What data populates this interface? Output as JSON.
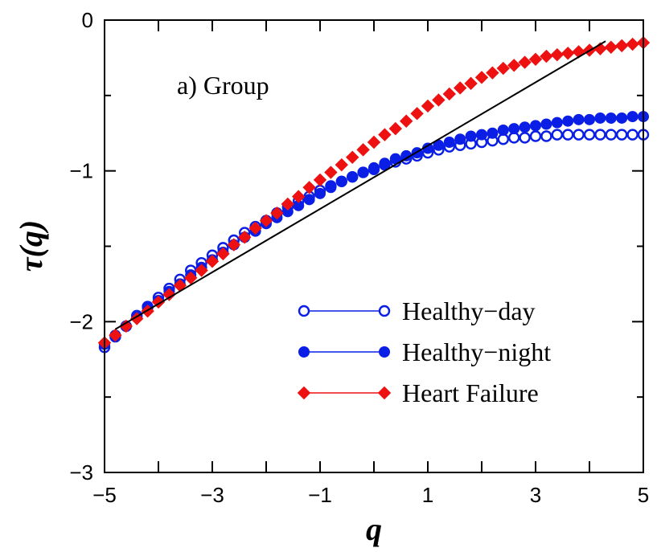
{
  "chart_data": {
    "type": "scatter",
    "annotation": "a) Group",
    "xlabel": "q",
    "ylabel": "τ(q)",
    "xlim": [
      -5,
      5
    ],
    "ylim": [
      -3,
      0
    ],
    "xticks_labeled": [
      -5,
      -3,
      -1,
      1,
      3,
      5
    ],
    "xtick_labels": [
      "−5",
      "−3",
      "−1",
      "1",
      "3",
      "5"
    ],
    "xticks_minor": [
      -4,
      -2,
      0,
      2,
      4
    ],
    "yticks": [
      0,
      -1,
      -2,
      -3
    ],
    "ytick_labels": [
      "0",
      "−1",
      "−2",
      "−3"
    ],
    "legend_position": "bottom-right",
    "x": [
      -5,
      -4.8,
      -4.6,
      -4.4,
      -4.2,
      -4,
      -3.8,
      -3.6,
      -3.4,
      -3.2,
      -3,
      -2.8,
      -2.6,
      -2.4,
      -2.2,
      -2,
      -1.8,
      -1.6,
      -1.4,
      -1.2,
      -1,
      -0.8,
      -0.6,
      -0.4,
      -0.2,
      0,
      0.2,
      0.4,
      0.6,
      0.8,
      1,
      1.2,
      1.4,
      1.6,
      1.8,
      2,
      2.2,
      2.4,
      2.6,
      2.8,
      3,
      3.2,
      3.4,
      3.6,
      3.8,
      4,
      4.2,
      4.4,
      4.6,
      4.8,
      5
    ],
    "series": [
      {
        "name": "Healthy−day",
        "marker": "open-circle",
        "color": "#0a1ee6",
        "y": [
          -2.17,
          -2.1,
          -2.03,
          -1.96,
          -1.9,
          -1.84,
          -1.78,
          -1.72,
          -1.66,
          -1.61,
          -1.56,
          -1.51,
          -1.46,
          -1.41,
          -1.37,
          -1.33,
          -1.28,
          -1.24,
          -1.2,
          -1.17,
          -1.13,
          -1.1,
          -1.07,
          -1.04,
          -1.01,
          -0.99,
          -0.96,
          -0.94,
          -0.92,
          -0.9,
          -0.88,
          -0.86,
          -0.84,
          -0.83,
          -0.82,
          -0.81,
          -0.8,
          -0.79,
          -0.78,
          -0.78,
          -0.77,
          -0.77,
          -0.76,
          -0.76,
          -0.76,
          -0.76,
          -0.76,
          -0.76,
          -0.76,
          -0.76,
          -0.76
        ]
      },
      {
        "name": "Healthy−night",
        "marker": "filled-circle",
        "color": "#0a1ee6",
        "y": [
          -2.15,
          -2.09,
          -2.03,
          -1.97,
          -1.91,
          -1.86,
          -1.8,
          -1.75,
          -1.69,
          -1.64,
          -1.59,
          -1.54,
          -1.49,
          -1.44,
          -1.4,
          -1.35,
          -1.31,
          -1.27,
          -1.23,
          -1.19,
          -1.15,
          -1.11,
          -1.07,
          -1.04,
          -1.01,
          -0.98,
          -0.95,
          -0.92,
          -0.9,
          -0.88,
          -0.85,
          -0.83,
          -0.81,
          -0.79,
          -0.77,
          -0.76,
          -0.75,
          -0.73,
          -0.72,
          -0.71,
          -0.7,
          -0.69,
          -0.68,
          -0.67,
          -0.66,
          -0.66,
          -0.65,
          -0.65,
          -0.65,
          -0.64,
          -0.64
        ]
      },
      {
        "name": "Heart Failure",
        "marker": "diamond",
        "color": "#ee1111",
        "y": [
          -2.14,
          -2.09,
          -2.03,
          -1.98,
          -1.93,
          -1.87,
          -1.82,
          -1.76,
          -1.71,
          -1.66,
          -1.6,
          -1.55,
          -1.49,
          -1.44,
          -1.38,
          -1.33,
          -1.28,
          -1.22,
          -1.17,
          -1.11,
          -1.06,
          -1.01,
          -0.96,
          -0.91,
          -0.86,
          -0.81,
          -0.76,
          -0.72,
          -0.67,
          -0.62,
          -0.57,
          -0.53,
          -0.49,
          -0.45,
          -0.42,
          -0.38,
          -0.35,
          -0.32,
          -0.3,
          -0.28,
          -0.26,
          -0.24,
          -0.23,
          -0.22,
          -0.21,
          -0.2,
          -0.19,
          -0.18,
          -0.17,
          -0.16,
          -0.15
        ]
      }
    ],
    "reference_line": {
      "color": "#000000",
      "x": [
        -4.8,
        4.3
      ],
      "y": [
        -2.05,
        -0.14
      ]
    }
  }
}
